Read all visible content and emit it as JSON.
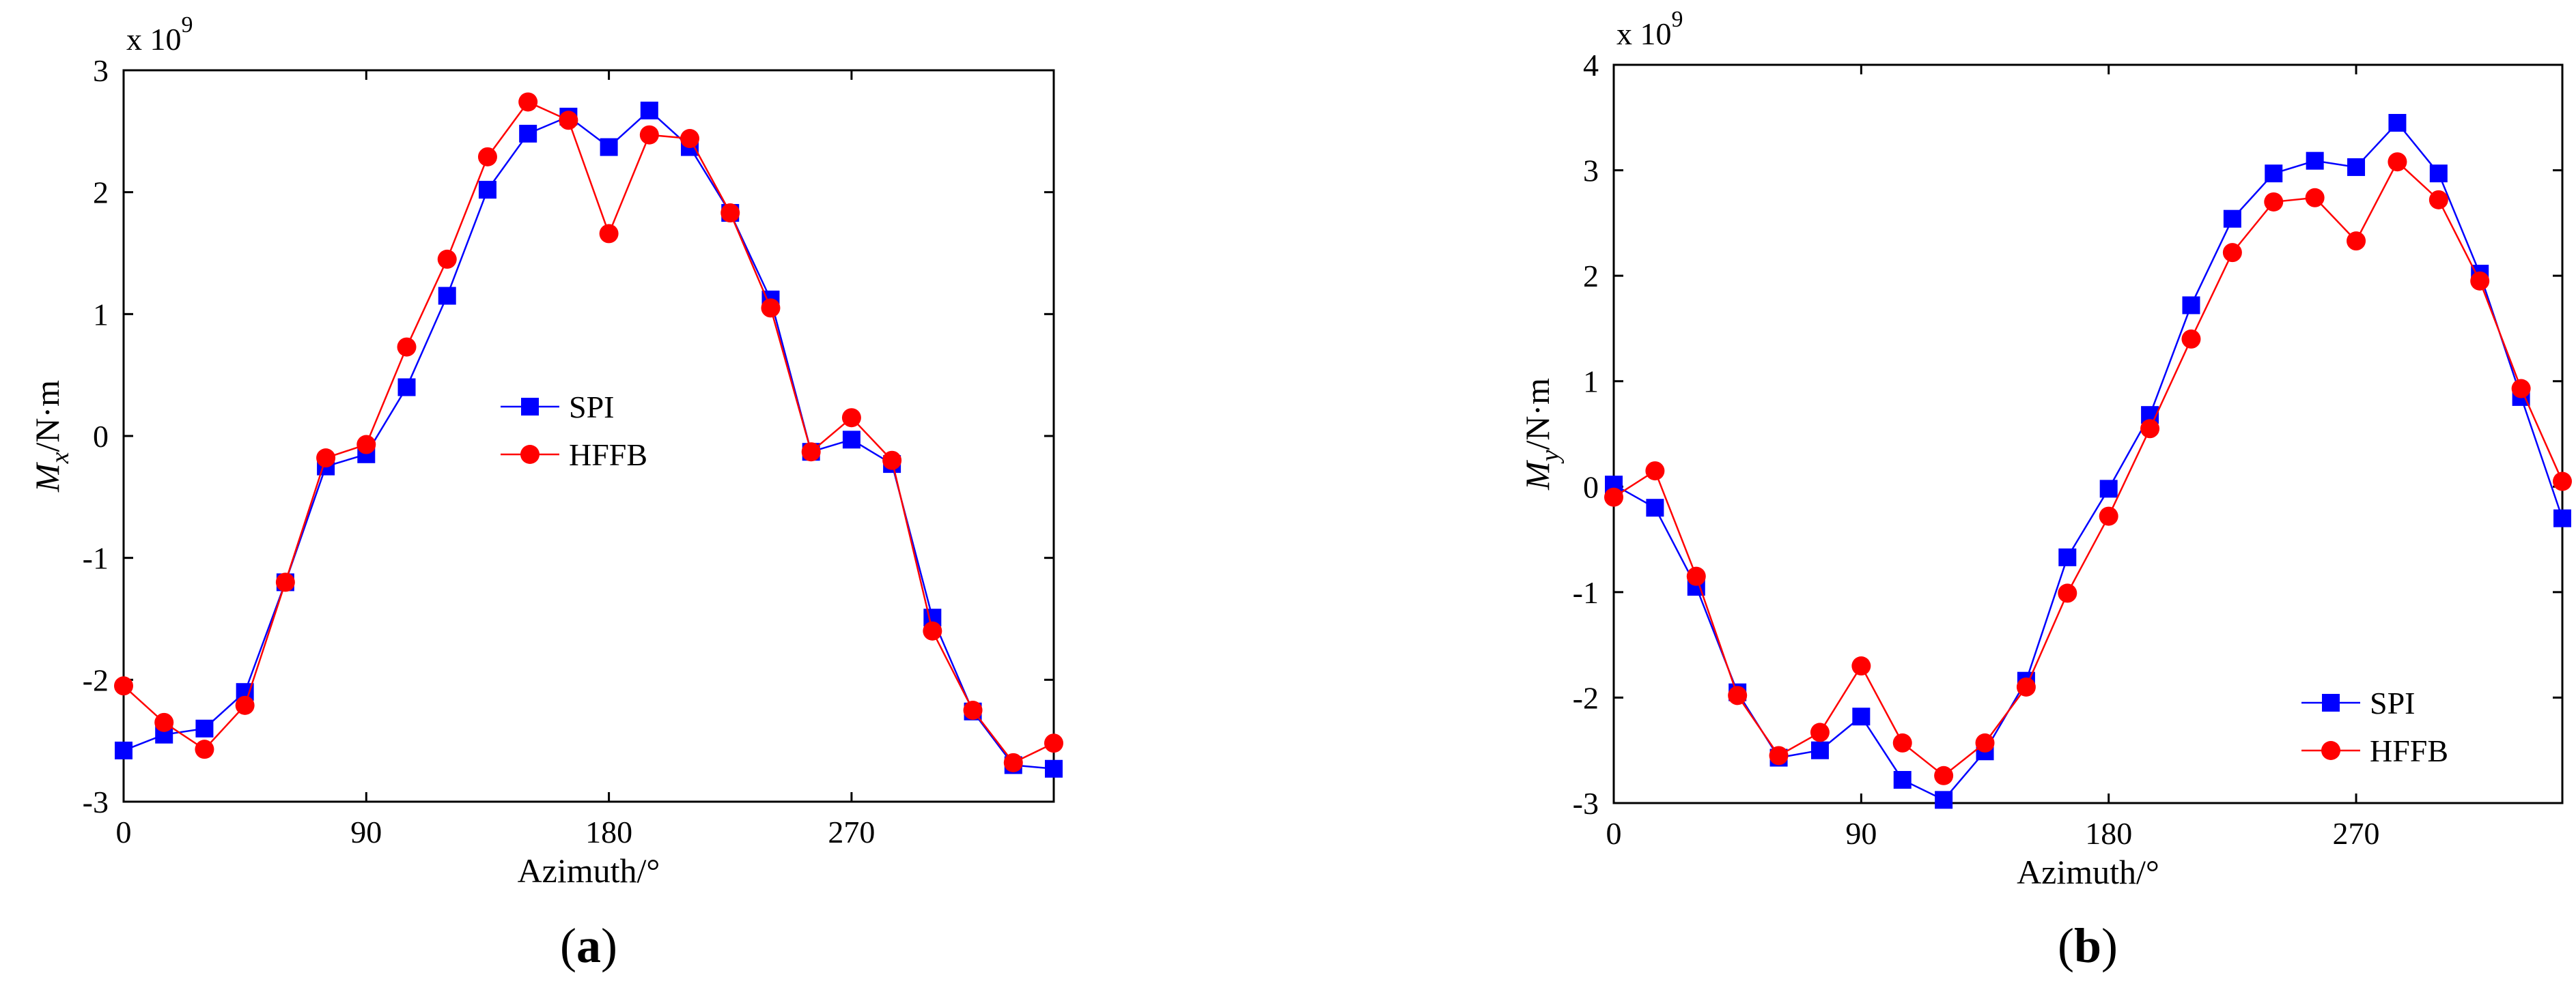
{
  "chart_data": [
    {
      "type": "line",
      "panel_label": "a",
      "xlabel": "Azimuth/°",
      "ylabel_main": "M",
      "ylabel_sub": "x",
      "ylabel_units": "/N·m",
      "y_multiplier": {
        "base": "x 10",
        "exponent": "9"
      },
      "xlim": [
        0,
        345
      ],
      "ylim": [
        -3,
        3
      ],
      "xticks": [
        0,
        90,
        180,
        270
      ],
      "yticks": [
        -3,
        -2,
        -1,
        0,
        1,
        2,
        3
      ],
      "legend_position": "center",
      "x": [
        0,
        15,
        30,
        45,
        60,
        75,
        90,
        105,
        120,
        135,
        150,
        165,
        180,
        195,
        210,
        225,
        240,
        255,
        270,
        285,
        300,
        315,
        330,
        345
      ],
      "series": [
        {
          "name": "SPI",
          "color": "#0000ff",
          "marker": "square",
          "values": [
            -2.58,
            -2.45,
            -2.4,
            -2.1,
            -1.2,
            -0.25,
            -0.15,
            0.4,
            1.15,
            2.02,
            2.48,
            2.62,
            2.37,
            2.67,
            2.37,
            1.83,
            1.12,
            -0.13,
            -0.03,
            -0.23,
            -1.49,
            -2.26,
            -2.7,
            -2.73
          ]
        },
        {
          "name": "HFFB",
          "color": "#ff0000",
          "marker": "circle",
          "values": [
            -2.05,
            -2.35,
            -2.57,
            -2.21,
            -1.2,
            -0.18,
            -0.07,
            0.73,
            1.45,
            2.29,
            2.74,
            2.59,
            1.66,
            2.47,
            2.44,
            1.83,
            1.05,
            -0.13,
            0.15,
            -0.2,
            -1.6,
            -2.25,
            -2.68,
            -2.52
          ]
        }
      ]
    },
    {
      "type": "line",
      "panel_label": "b",
      "xlabel": "Azimuth/°",
      "ylabel_main": "M",
      "ylabel_sub": "y",
      "ylabel_units": "/N·m",
      "y_multiplier": {
        "base": "x 10",
        "exponent": "9"
      },
      "xlim": [
        0,
        345
      ],
      "ylim": [
        -3,
        4
      ],
      "xticks": [
        0,
        90,
        180,
        270
      ],
      "yticks": [
        -3,
        -2,
        -1,
        0,
        1,
        2,
        3,
        4
      ],
      "legend_position": "bottom-right",
      "x": [
        0,
        15,
        30,
        45,
        60,
        75,
        90,
        105,
        120,
        135,
        150,
        165,
        180,
        195,
        210,
        225,
        240,
        255,
        270,
        285,
        300,
        315,
        330,
        345
      ],
      "series": [
        {
          "name": "SPI",
          "color": "#0000ff",
          "marker": "square",
          "values": [
            0.02,
            -0.2,
            -0.95,
            -1.95,
            -2.57,
            -2.5,
            -2.18,
            -2.78,
            -2.97,
            -2.51,
            -1.84,
            -0.67,
            -0.02,
            0.68,
            1.72,
            2.54,
            2.97,
            3.09,
            3.03,
            3.45,
            2.97,
            2.02,
            0.85,
            -0.3
          ]
        },
        {
          "name": "HFFB",
          "color": "#ff0000",
          "marker": "circle",
          "values": [
            -0.1,
            0.15,
            -0.85,
            -1.98,
            -2.55,
            -2.33,
            -1.7,
            -2.43,
            -2.74,
            -2.43,
            -1.9,
            -1.01,
            -0.28,
            0.55,
            1.4,
            2.22,
            2.7,
            2.74,
            2.33,
            3.08,
            2.72,
            1.95,
            0.93,
            0.05
          ]
        }
      ]
    }
  ]
}
